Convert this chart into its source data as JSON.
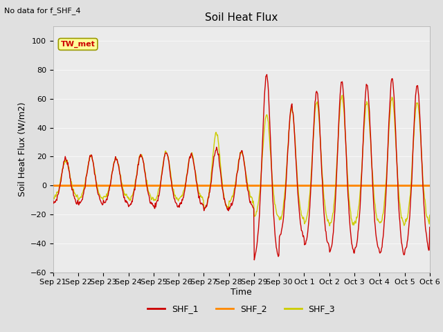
{
  "title": "Soil Heat Flux",
  "subtitle": "No data for f_SHF_4",
  "ylabel": "Soil Heat Flux (W/m2)",
  "xlabel": "Time",
  "ylim": [
    -60,
    110
  ],
  "yticks": [
    -60,
    -40,
    -20,
    0,
    20,
    40,
    60,
    80,
    100
  ],
  "legend_labels": [
    "SHF_1",
    "SHF_2",
    "SHF_3"
  ],
  "legend_colors": [
    "#cc0000",
    "#ff8800",
    "#cccc00"
  ],
  "annotation_text": "TW_met",
  "annotation_color": "#cc0000",
  "annotation_bg": "#ffff99",
  "zero_line_color": "#ff8800",
  "background_color": "#e0e0e0",
  "plot_bg_color": "#ebebeb",
  "tick_labels": [
    "Sep 21",
    "Sep 22",
    "Sep 23",
    "Sep 24",
    "Sep 25",
    "Sep 26",
    "Sep 27",
    "Sep 28",
    "Sep 29",
    "Sep 30",
    "Oct 1",
    "Oct 2",
    "Oct 3",
    "Oct 4",
    "Oct 5",
    "Oct 6"
  ]
}
